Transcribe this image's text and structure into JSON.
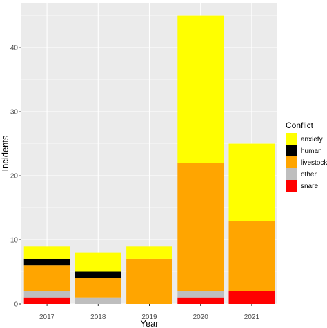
{
  "chart_data": {
    "type": "bar",
    "stacked": true,
    "categories": [
      "2017",
      "2018",
      "2019",
      "2020",
      "2021"
    ],
    "series": [
      {
        "name": "snare",
        "color": "#ff0000",
        "values": [
          1,
          0,
          0,
          1,
          2
        ]
      },
      {
        "name": "other",
        "color": "#bebebe",
        "values": [
          1,
          1,
          0,
          1,
          0
        ]
      },
      {
        "name": "livestock",
        "color": "#ffa500",
        "values": [
          4,
          3,
          7,
          20,
          11
        ]
      },
      {
        "name": "human",
        "color": "#000000",
        "values": [
          1,
          1,
          0,
          0,
          0
        ]
      },
      {
        "name": "anxiety",
        "color": "#ffff00",
        "values": [
          2,
          3,
          2,
          23,
          12
        ]
      }
    ],
    "xlabel": "Year",
    "ylabel": "Incidents",
    "ylim": [
      0,
      47
    ],
    "yticks": [
      0,
      10,
      20,
      30,
      40
    ],
    "grid": true,
    "panel_background": "#ebebeb",
    "legend": {
      "title": "Conflict",
      "position": "right",
      "labels": [
        "anxiety",
        "human",
        "livestock",
        "other",
        "snare"
      ]
    }
  }
}
